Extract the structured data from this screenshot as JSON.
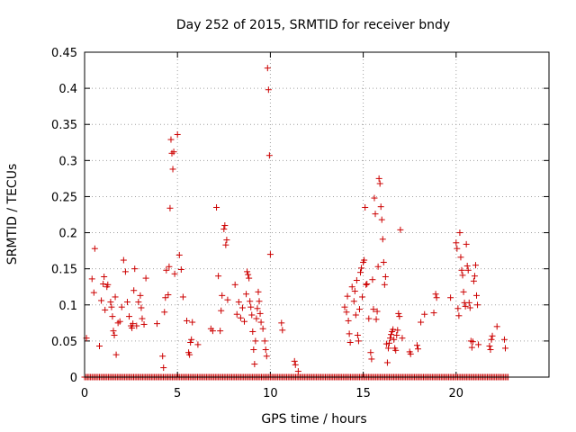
{
  "chart_data": {
    "type": "scatter",
    "title": "Day 252 of 2015, SRMTID for receiver bndy",
    "xlabel": "GPS time / hours",
    "ylabel": "SRMTID / TECUs",
    "xlim": [
      0,
      25
    ],
    "ylim": [
      0,
      0.45
    ],
    "xticks": [
      0,
      5,
      10,
      15,
      20
    ],
    "yticks": [
      0,
      0.05,
      0.1,
      0.15,
      0.2,
      0.25,
      0.3,
      0.35,
      0.4,
      0.45
    ],
    "xtick_labels": [
      "0",
      "5",
      "10",
      "15",
      "20"
    ],
    "ytick_labels": [
      "0",
      "0.05",
      "0.1",
      "0.15",
      "0.2",
      "0.25",
      "0.3",
      "0.35",
      "0.4",
      "0.45"
    ],
    "grid": true,
    "marker": "+",
    "color": "#cc0000",
    "baseline": {
      "y": 0.0,
      "x_start": 0.0,
      "x_end": 22.8,
      "step": 0.08
    },
    "series": [
      {
        "name": "SRMTID",
        "points": [
          [
            0.1,
            0.054
          ],
          [
            0.4,
            0.136
          ],
          [
            0.5,
            0.117
          ],
          [
            0.55,
            0.178
          ],
          [
            0.8,
            0.043
          ],
          [
            0.9,
            0.106
          ],
          [
            1.0,
            0.129
          ],
          [
            1.05,
            0.139
          ],
          [
            1.1,
            0.093
          ],
          [
            1.2,
            0.125
          ],
          [
            1.25,
            0.128
          ],
          [
            1.4,
            0.104
          ],
          [
            1.45,
            0.097
          ],
          [
            1.5,
            0.084
          ],
          [
            1.55,
            0.064
          ],
          [
            1.6,
            0.058
          ],
          [
            1.65,
            0.111
          ],
          [
            1.7,
            0.031
          ],
          [
            1.8,
            0.075
          ],
          [
            1.9,
            0.077
          ],
          [
            2.0,
            0.097
          ],
          [
            2.1,
            0.162
          ],
          [
            2.2,
            0.146
          ],
          [
            2.3,
            0.104
          ],
          [
            2.4,
            0.084
          ],
          [
            2.5,
            0.071
          ],
          [
            2.55,
            0.068
          ],
          [
            2.6,
            0.074
          ],
          [
            2.65,
            0.12
          ],
          [
            2.7,
            0.15
          ],
          [
            2.8,
            0.071
          ],
          [
            2.9,
            0.104
          ],
          [
            3.0,
            0.113
          ],
          [
            3.05,
            0.096
          ],
          [
            3.1,
            0.081
          ],
          [
            3.2,
            0.073
          ],
          [
            3.3,
            0.137
          ],
          [
            3.9,
            0.074
          ],
          [
            4.2,
            0.029
          ],
          [
            4.25,
            0.013
          ],
          [
            4.3,
            0.09
          ],
          [
            4.35,
            0.11
          ],
          [
            4.4,
            0.148
          ],
          [
            4.5,
            0.114
          ],
          [
            4.55,
            0.153
          ],
          [
            4.6,
            0.234
          ],
          [
            4.65,
            0.329
          ],
          [
            4.7,
            0.31
          ],
          [
            4.75,
            0.288
          ],
          [
            4.8,
            0.312
          ],
          [
            4.85,
            0.143
          ],
          [
            5.0,
            0.336
          ],
          [
            5.1,
            0.169
          ],
          [
            5.2,
            0.149
          ],
          [
            5.3,
            0.111
          ],
          [
            5.5,
            0.078
          ],
          [
            5.6,
            0.034
          ],
          [
            5.65,
            0.031
          ],
          [
            5.7,
            0.048
          ],
          [
            5.75,
            0.052
          ],
          [
            5.8,
            0.076
          ],
          [
            6.1,
            0.045
          ],
          [
            6.8,
            0.067
          ],
          [
            6.9,
            0.064
          ],
          [
            7.1,
            0.235
          ],
          [
            7.2,
            0.14
          ],
          [
            7.3,
            0.064
          ],
          [
            7.35,
            0.092
          ],
          [
            7.4,
            0.113
          ],
          [
            7.5,
            0.205
          ],
          [
            7.55,
            0.21
          ],
          [
            7.6,
            0.183
          ],
          [
            7.65,
            0.19
          ],
          [
            7.7,
            0.107
          ],
          [
            8.1,
            0.128
          ],
          [
            8.2,
            0.087
          ],
          [
            8.3,
            0.104
          ],
          [
            8.4,
            0.082
          ],
          [
            8.5,
            0.096
          ],
          [
            8.6,
            0.077
          ],
          [
            8.7,
            0.115
          ],
          [
            8.75,
            0.146
          ],
          [
            8.8,
            0.142
          ],
          [
            8.85,
            0.137
          ],
          [
            8.9,
            0.105
          ],
          [
            8.95,
            0.097
          ],
          [
            9.0,
            0.086
          ],
          [
            9.05,
            0.063
          ],
          [
            9.1,
            0.038
          ],
          [
            9.15,
            0.018
          ],
          [
            9.2,
            0.05
          ],
          [
            9.25,
            0.081
          ],
          [
            9.3,
            0.095
          ],
          [
            9.35,
            0.118
          ],
          [
            9.4,
            0.105
          ],
          [
            9.45,
            0.088
          ],
          [
            9.5,
            0.076
          ],
          [
            9.6,
            0.067
          ],
          [
            9.7,
            0.05
          ],
          [
            9.75,
            0.038
          ],
          [
            9.8,
            0.029
          ],
          [
            9.85,
            0.428
          ],
          [
            9.9,
            0.398
          ],
          [
            9.95,
            0.307
          ],
          [
            10.0,
            0.17
          ],
          [
            10.6,
            0.075
          ],
          [
            10.65,
            0.065
          ],
          [
            11.3,
            0.022
          ],
          [
            11.35,
            0.017
          ],
          [
            11.5,
            0.008
          ],
          [
            14.0,
            0.097
          ],
          [
            14.1,
            0.09
          ],
          [
            14.15,
            0.112
          ],
          [
            14.2,
            0.078
          ],
          [
            14.25,
            0.06
          ],
          [
            14.3,
            0.048
          ],
          [
            14.4,
            0.125
          ],
          [
            14.5,
            0.105
          ],
          [
            14.55,
            0.119
          ],
          [
            14.6,
            0.086
          ],
          [
            14.65,
            0.134
          ],
          [
            14.7,
            0.058
          ],
          [
            14.75,
            0.05
          ],
          [
            14.8,
            0.094
          ],
          [
            14.85,
            0.145
          ],
          [
            14.9,
            0.151
          ],
          [
            14.95,
            0.111
          ],
          [
            15.0,
            0.159
          ],
          [
            15.05,
            0.162
          ],
          [
            15.1,
            0.235
          ],
          [
            15.15,
            0.128
          ],
          [
            15.2,
            0.129
          ],
          [
            15.3,
            0.081
          ],
          [
            15.4,
            0.034
          ],
          [
            15.45,
            0.025
          ],
          [
            15.5,
            0.135
          ],
          [
            15.55,
            0.094
          ],
          [
            15.6,
            0.248
          ],
          [
            15.65,
            0.226
          ],
          [
            15.7,
            0.08
          ],
          [
            15.75,
            0.091
          ],
          [
            15.8,
            0.153
          ],
          [
            15.85,
            0.275
          ],
          [
            15.9,
            0.268
          ],
          [
            15.95,
            0.236
          ],
          [
            16.0,
            0.218
          ],
          [
            16.05,
            0.191
          ],
          [
            16.1,
            0.159
          ],
          [
            16.15,
            0.128
          ],
          [
            16.2,
            0.139
          ],
          [
            16.25,
            0.046
          ],
          [
            16.3,
            0.02
          ],
          [
            16.35,
            0.04
          ],
          [
            16.4,
            0.047
          ],
          [
            16.45,
            0.054
          ],
          [
            16.5,
            0.059
          ],
          [
            16.55,
            0.063
          ],
          [
            16.6,
            0.066
          ],
          [
            16.65,
            0.052
          ],
          [
            16.7,
            0.04
          ],
          [
            16.75,
            0.037
          ],
          [
            16.8,
            0.058
          ],
          [
            16.85,
            0.065
          ],
          [
            16.9,
            0.088
          ],
          [
            16.95,
            0.084
          ],
          [
            17.0,
            0.204
          ],
          [
            17.1,
            0.054
          ],
          [
            17.5,
            0.035
          ],
          [
            17.55,
            0.032
          ],
          [
            17.9,
            0.044
          ],
          [
            17.95,
            0.039
          ],
          [
            18.1,
            0.076
          ],
          [
            18.3,
            0.087
          ],
          [
            18.8,
            0.089
          ],
          [
            18.9,
            0.115
          ],
          [
            18.95,
            0.11
          ],
          [
            19.7,
            0.11
          ],
          [
            20.0,
            0.186
          ],
          [
            20.05,
            0.178
          ],
          [
            20.1,
            0.095
          ],
          [
            20.15,
            0.085
          ],
          [
            20.2,
            0.2
          ],
          [
            20.25,
            0.166
          ],
          [
            20.3,
            0.148
          ],
          [
            20.35,
            0.141
          ],
          [
            20.4,
            0.118
          ],
          [
            20.45,
            0.103
          ],
          [
            20.5,
            0.098
          ],
          [
            20.55,
            0.184
          ],
          [
            20.6,
            0.154
          ],
          [
            20.65,
            0.148
          ],
          [
            20.7,
            0.103
          ],
          [
            20.75,
            0.096
          ],
          [
            20.8,
            0.05
          ],
          [
            20.85,
            0.041
          ],
          [
            20.9,
            0.049
          ],
          [
            20.95,
            0.133
          ],
          [
            21.0,
            0.14
          ],
          [
            21.05,
            0.155
          ],
          [
            21.1,
            0.113
          ],
          [
            21.15,
            0.1
          ],
          [
            21.2,
            0.045
          ],
          [
            21.8,
            0.043
          ],
          [
            21.85,
            0.038
          ],
          [
            21.9,
            0.052
          ],
          [
            21.95,
            0.057
          ],
          [
            22.2,
            0.07
          ],
          [
            22.6,
            0.052
          ],
          [
            22.65,
            0.04
          ]
        ]
      }
    ]
  }
}
